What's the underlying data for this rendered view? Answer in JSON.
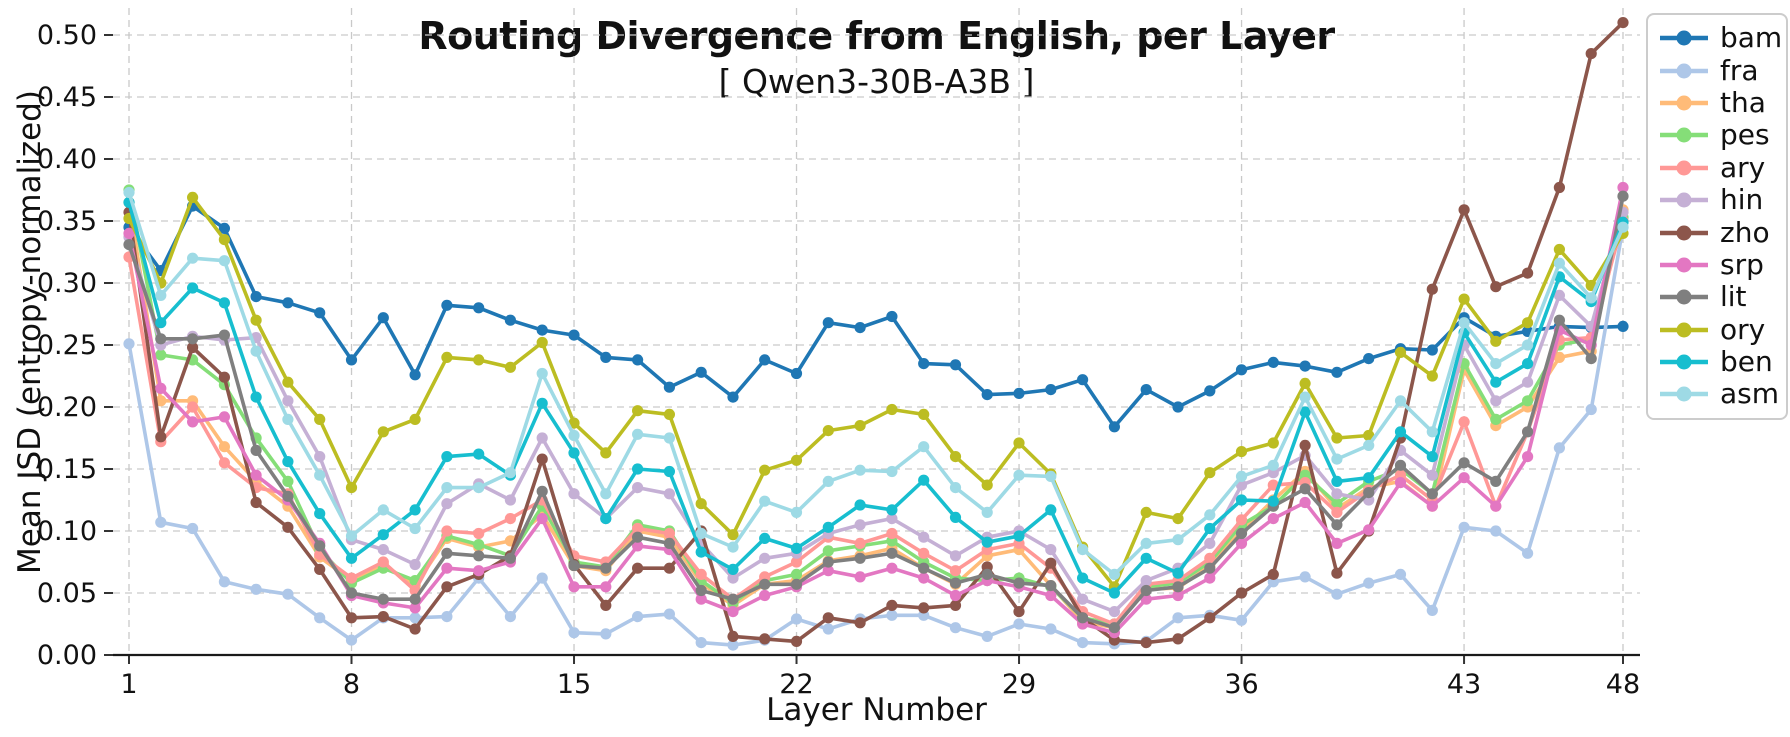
{
  "chart": {
    "title": "Routing Divergence from English, per Layer",
    "subtitle": "[ Qwen3-30B-A3B ]",
    "xlabel": "Layer Number",
    "ylabel": "Mean JSD (entropy-normalized)"
  },
  "chart_data": {
    "type": "line",
    "title": "Routing Divergence from English, per Layer",
    "subtitle": "[ Qwen3-30B-A3B ]",
    "xlabel": "Layer Number",
    "ylabel": "Mean JSD (entropy-normalized)",
    "x": [
      1,
      2,
      3,
      4,
      5,
      6,
      7,
      8,
      9,
      10,
      11,
      12,
      13,
      14,
      15,
      16,
      17,
      18,
      19,
      20,
      21,
      22,
      23,
      24,
      25,
      26,
      27,
      28,
      29,
      30,
      31,
      32,
      33,
      34,
      35,
      36,
      37,
      38,
      39,
      40,
      41,
      42,
      43,
      44,
      45,
      46,
      47,
      48
    ],
    "x_ticks": [
      1,
      8,
      15,
      22,
      29,
      36,
      43,
      48
    ],
    "y_ticks": [
      "0.00",
      "0.05",
      "0.10",
      "0.15",
      "0.20",
      "0.25",
      "0.30",
      "0.35",
      "0.40",
      "0.45",
      "0.50"
    ],
    "xlim": [
      0.5,
      48.5
    ],
    "ylim": [
      0.0,
      0.52
    ],
    "grid": true,
    "grid_style": "dashed",
    "legend_position": "upper-right-outside",
    "marker": "circle",
    "series": [
      {
        "name": "bam",
        "color": "#1f77b4",
        "values": [
          0.345,
          0.31,
          0.362,
          0.344,
          0.289,
          0.284,
          0.276,
          0.238,
          0.272,
          0.226,
          0.282,
          0.28,
          0.27,
          0.262,
          0.258,
          0.24,
          0.238,
          0.216,
          0.228,
          0.208,
          0.238,
          0.227,
          0.268,
          0.264,
          0.273,
          0.235,
          0.234,
          0.21,
          0.211,
          0.214,
          0.222,
          0.184,
          0.214,
          0.2,
          0.213,
          0.23,
          0.236,
          0.233,
          0.228,
          0.239,
          0.247,
          0.246,
          0.272,
          0.257,
          0.261,
          0.265,
          0.264,
          0.265
        ]
      },
      {
        "name": "fra",
        "color": "#aec7e8",
        "values": [
          0.251,
          0.107,
          0.102,
          0.059,
          0.053,
          0.049,
          0.03,
          0.012,
          0.03,
          0.03,
          0.031,
          0.062,
          0.031,
          0.062,
          0.018,
          0.017,
          0.031,
          0.033,
          0.01,
          0.008,
          0.012,
          0.029,
          0.021,
          0.029,
          0.032,
          0.032,
          0.022,
          0.015,
          0.025,
          0.021,
          0.01,
          0.009,
          0.011,
          0.03,
          0.032,
          0.028,
          0.059,
          0.063,
          0.049,
          0.058,
          0.065,
          0.036,
          0.103,
          0.1,
          0.082,
          0.167,
          0.198,
          0.345
        ]
      },
      {
        "name": "tha",
        "color": "#ffbb78",
        "values": [
          0.365,
          0.205,
          0.205,
          0.168,
          0.14,
          0.12,
          0.079,
          0.06,
          0.073,
          0.056,
          0.094,
          0.087,
          0.092,
          0.113,
          0.072,
          0.068,
          0.1,
          0.095,
          0.058,
          0.04,
          0.057,
          0.06,
          0.076,
          0.08,
          0.086,
          0.07,
          0.057,
          0.08,
          0.085,
          0.056,
          0.027,
          0.022,
          0.053,
          0.054,
          0.072,
          0.1,
          0.125,
          0.148,
          0.118,
          0.135,
          0.14,
          0.12,
          0.23,
          0.185,
          0.2,
          0.24,
          0.245,
          0.359
        ]
      },
      {
        "name": "pes",
        "color": "#85de78",
        "values": [
          0.375,
          0.242,
          0.238,
          0.218,
          0.175,
          0.14,
          0.085,
          0.058,
          0.07,
          0.06,
          0.096,
          0.089,
          0.08,
          0.12,
          0.075,
          0.071,
          0.105,
          0.1,
          0.06,
          0.042,
          0.06,
          0.065,
          0.084,
          0.088,
          0.092,
          0.075,
          0.062,
          0.06,
          0.062,
          0.055,
          0.03,
          0.025,
          0.055,
          0.058,
          0.075,
          0.105,
          0.12,
          0.145,
          0.122,
          0.14,
          0.15,
          0.13,
          0.235,
          0.19,
          0.205,
          0.25,
          0.255,
          0.353
        ]
      },
      {
        "name": "ary",
        "color": "#ff9896",
        "values": [
          0.321,
          0.172,
          0.2,
          0.155,
          0.135,
          0.13,
          0.081,
          0.062,
          0.075,
          0.052,
          0.1,
          0.098,
          0.11,
          0.125,
          0.08,
          0.075,
          0.102,
          0.098,
          0.065,
          0.045,
          0.063,
          0.075,
          0.095,
          0.09,
          0.098,
          0.082,
          0.068,
          0.085,
          0.09,
          0.07,
          0.035,
          0.025,
          0.057,
          0.06,
          0.078,
          0.109,
          0.137,
          0.139,
          0.115,
          0.133,
          0.145,
          0.125,
          0.188,
          0.12,
          0.18,
          0.254,
          0.256,
          0.35
        ]
      },
      {
        "name": "hin",
        "color": "#c5b0d5",
        "values": [
          0.337,
          0.25,
          0.257,
          0.254,
          0.256,
          0.205,
          0.16,
          0.093,
          0.085,
          0.073,
          0.122,
          0.138,
          0.125,
          0.175,
          0.13,
          0.11,
          0.135,
          0.13,
          0.09,
          0.062,
          0.078,
          0.082,
          0.098,
          0.105,
          0.11,
          0.095,
          0.08,
          0.095,
          0.1,
          0.085,
          0.045,
          0.035,
          0.06,
          0.07,
          0.09,
          0.137,
          0.147,
          0.161,
          0.13,
          0.125,
          0.165,
          0.145,
          0.25,
          0.205,
          0.22,
          0.29,
          0.265,
          0.357
        ]
      },
      {
        "name": "zho",
        "color": "#8c564b",
        "values": [
          0.357,
          0.176,
          0.248,
          0.224,
          0.123,
          0.103,
          0.069,
          0.03,
          0.031,
          0.021,
          0.055,
          0.065,
          0.08,
          0.158,
          0.073,
          0.04,
          0.07,
          0.07,
          0.1,
          0.015,
          0.013,
          0.011,
          0.03,
          0.026,
          0.04,
          0.038,
          0.04,
          0.071,
          0.035,
          0.074,
          0.03,
          0.012,
          0.01,
          0.013,
          0.03,
          0.05,
          0.065,
          0.169,
          0.066,
          0.1,
          0.175,
          0.295,
          0.359,
          0.297,
          0.308,
          0.377,
          0.485,
          0.51
        ]
      },
      {
        "name": "srp",
        "color": "#e377c2",
        "values": [
          0.34,
          0.215,
          0.188,
          0.192,
          0.145,
          0.125,
          0.09,
          0.048,
          0.042,
          0.038,
          0.07,
          0.068,
          0.075,
          0.11,
          0.055,
          0.055,
          0.088,
          0.085,
          0.045,
          0.035,
          0.048,
          0.055,
          0.068,
          0.063,
          0.07,
          0.062,
          0.048,
          0.06,
          0.055,
          0.048,
          0.025,
          0.018,
          0.045,
          0.048,
          0.062,
          0.09,
          0.11,
          0.123,
          0.09,
          0.101,
          0.139,
          0.12,
          0.143,
          0.12,
          0.16,
          0.262,
          0.25,
          0.377
        ]
      },
      {
        "name": "lit",
        "color": "#7f7f7f",
        "values": [
          0.331,
          0.255,
          0.255,
          0.258,
          0.165,
          0.128,
          0.088,
          0.05,
          0.045,
          0.045,
          0.082,
          0.08,
          0.078,
          0.132,
          0.072,
          0.07,
          0.095,
          0.09,
          0.052,
          0.045,
          0.057,
          0.057,
          0.075,
          0.078,
          0.082,
          0.07,
          0.058,
          0.065,
          0.058,
          0.056,
          0.03,
          0.022,
          0.052,
          0.055,
          0.07,
          0.098,
          0.12,
          0.134,
          0.105,
          0.131,
          0.153,
          0.13,
          0.155,
          0.14,
          0.18,
          0.27,
          0.239,
          0.37
        ]
      },
      {
        "name": "ory",
        "color": "#bcbd22",
        "values": [
          0.352,
          0.3,
          0.369,
          0.335,
          0.27,
          0.22,
          0.19,
          0.135,
          0.18,
          0.19,
          0.24,
          0.238,
          0.232,
          0.252,
          0.187,
          0.163,
          0.197,
          0.194,
          0.122,
          0.097,
          0.149,
          0.157,
          0.181,
          0.185,
          0.198,
          0.194,
          0.16,
          0.137,
          0.171,
          0.146,
          0.087,
          0.055,
          0.115,
          0.11,
          0.147,
          0.164,
          0.171,
          0.219,
          0.175,
          0.177,
          0.244,
          0.225,
          0.287,
          0.253,
          0.268,
          0.327,
          0.298,
          0.34
        ]
      },
      {
        "name": "ben",
        "color": "#17becf",
        "values": [
          0.365,
          0.268,
          0.296,
          0.284,
          0.208,
          0.156,
          0.114,
          0.078,
          0.097,
          0.117,
          0.16,
          0.162,
          0.145,
          0.203,
          0.163,
          0.11,
          0.15,
          0.148,
          0.083,
          0.069,
          0.094,
          0.086,
          0.103,
          0.121,
          0.117,
          0.141,
          0.111,
          0.091,
          0.096,
          0.117,
          0.062,
          0.05,
          0.078,
          0.066,
          0.102,
          0.125,
          0.124,
          0.196,
          0.14,
          0.143,
          0.18,
          0.16,
          0.26,
          0.22,
          0.235,
          0.305,
          0.285,
          0.349
        ]
      },
      {
        "name": "asm",
        "color": "#9edae5",
        "values": [
          0.373,
          0.29,
          0.32,
          0.318,
          0.245,
          0.19,
          0.145,
          0.096,
          0.117,
          0.102,
          0.135,
          0.135,
          0.147,
          0.227,
          0.177,
          0.13,
          0.178,
          0.175,
          0.098,
          0.087,
          0.124,
          0.115,
          0.14,
          0.149,
          0.148,
          0.168,
          0.135,
          0.115,
          0.145,
          0.144,
          0.085,
          0.065,
          0.09,
          0.093,
          0.113,
          0.144,
          0.153,
          0.208,
          0.158,
          0.169,
          0.205,
          0.18,
          0.268,
          0.235,
          0.25,
          0.316,
          0.288,
          0.345
        ]
      }
    ]
  }
}
